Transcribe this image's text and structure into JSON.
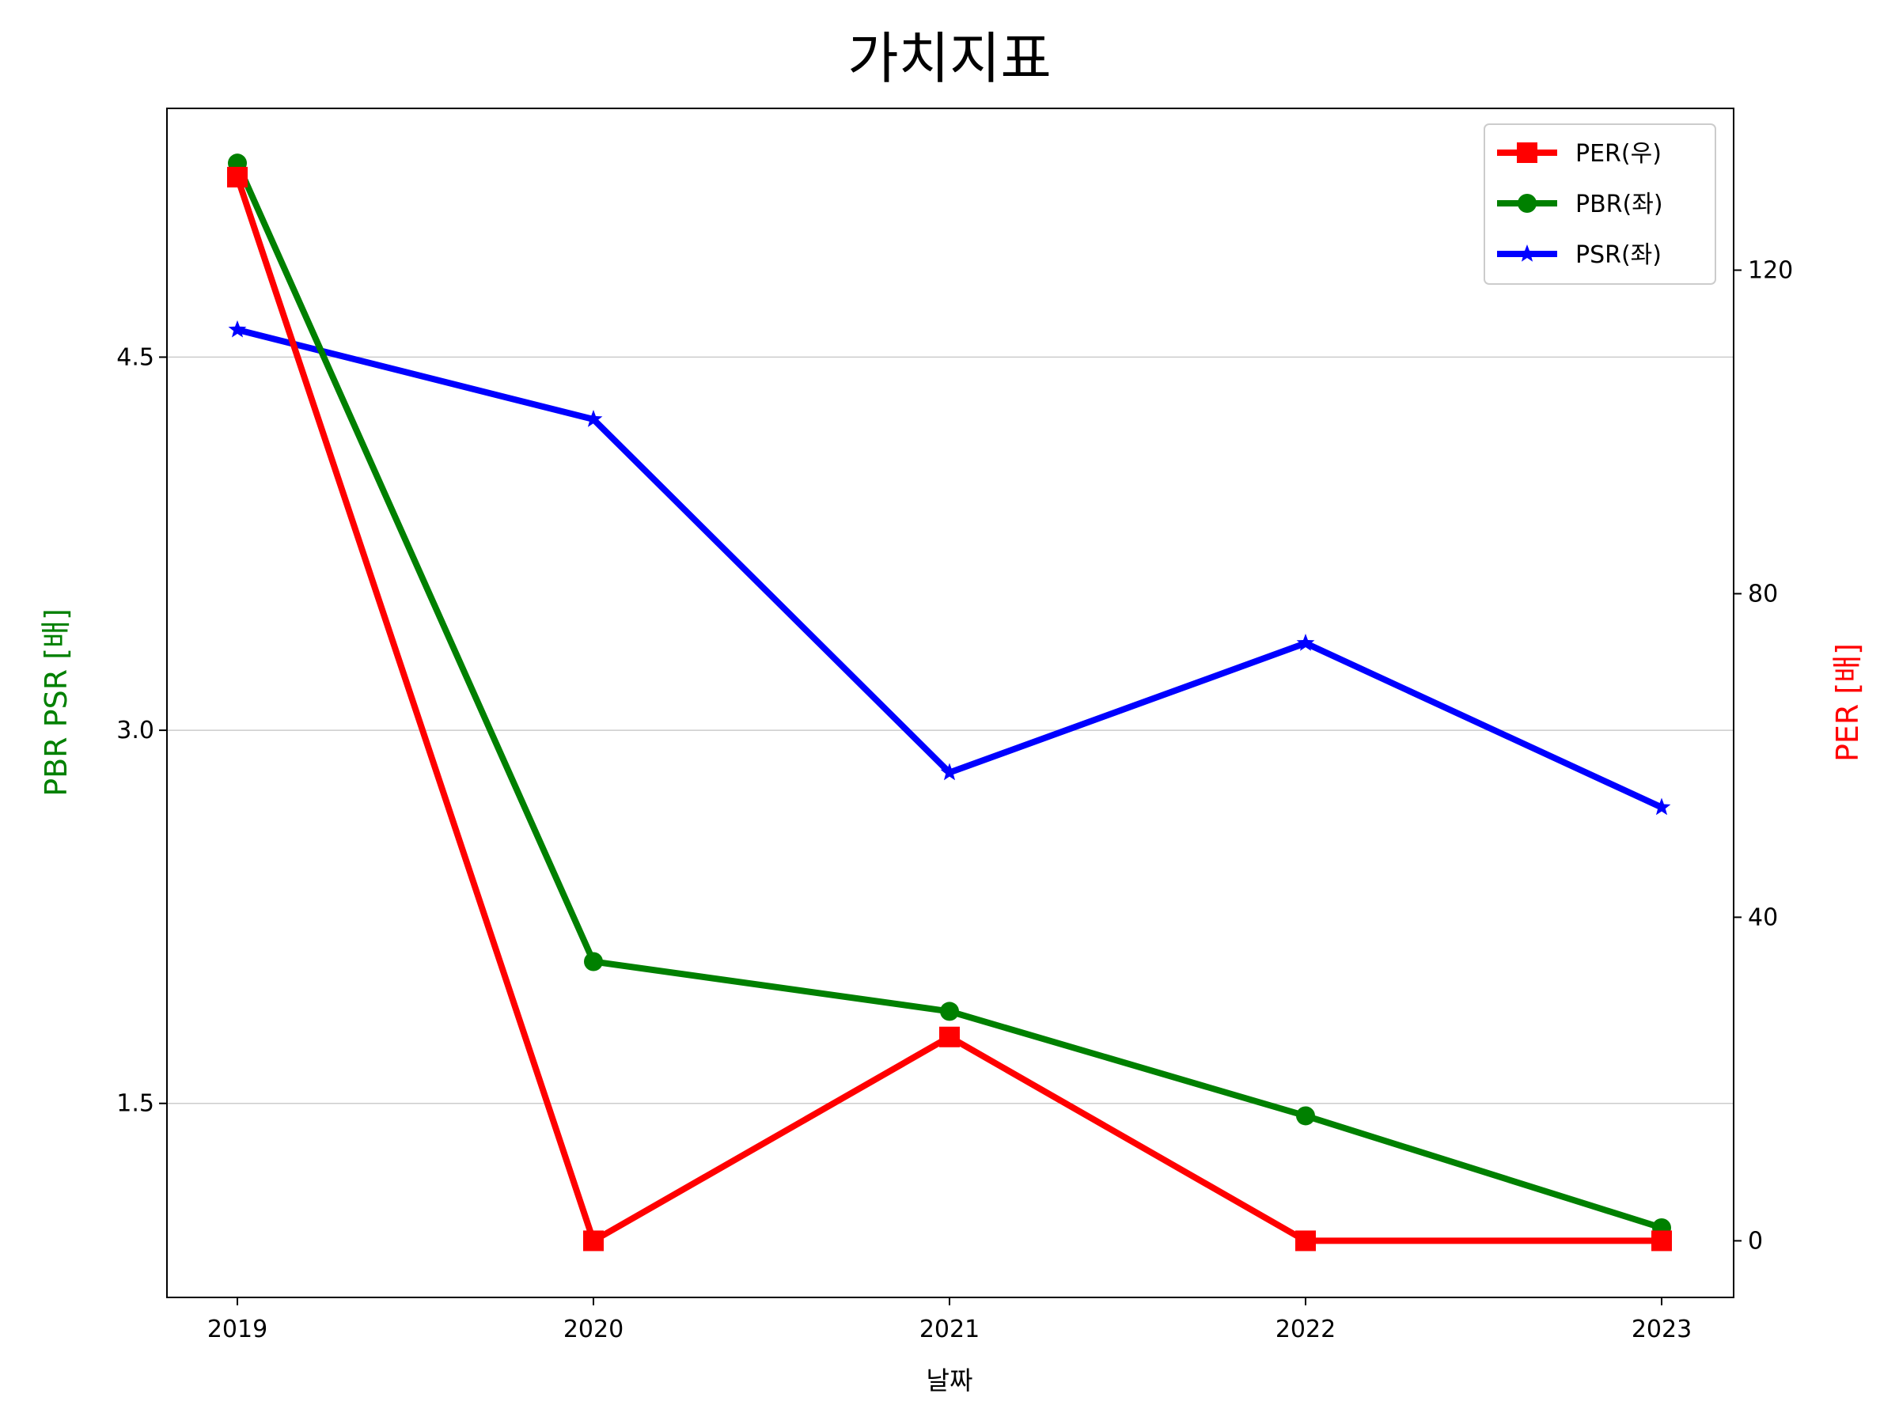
{
  "chart_data": {
    "type": "line",
    "title": "가치지표",
    "xlabel": "날짜",
    "ylabel_left": "PBR PSR [배]",
    "ylabel_right": "PER [배]",
    "categories": [
      "2019",
      "2020",
      "2021",
      "2022",
      "2023"
    ],
    "left_axis": {
      "ylim": [
        0.72,
        5.5
      ],
      "ticks": [
        1.5,
        3.0,
        4.5
      ],
      "tick_labels": [
        "1.5",
        "3.0",
        "4.5"
      ],
      "label_color": "#008000"
    },
    "right_axis": {
      "ylim": [
        -7,
        140
      ],
      "ticks": [
        0,
        40,
        80,
        120
      ],
      "tick_labels": [
        "0",
        "40",
        "80",
        "120"
      ],
      "label_color": "#ff0000"
    },
    "grid": "horizontal (left axis)",
    "legend_position": "top-right",
    "series": [
      {
        "name": "PER(우)",
        "axis": "right",
        "color": "#ff0000",
        "marker": "square",
        "values": [
          131.5,
          0,
          25.2,
          0,
          0
        ]
      },
      {
        "name": "PBR(좌)",
        "axis": "left",
        "color": "#008000",
        "marker": "circle",
        "values": [
          5.28,
          2.07,
          1.87,
          1.45,
          1.0
        ]
      },
      {
        "name": "PSR(좌)",
        "axis": "left",
        "color": "#0000ff",
        "marker": "star",
        "values": [
          4.61,
          4.25,
          2.83,
          3.35,
          2.69
        ]
      }
    ]
  }
}
